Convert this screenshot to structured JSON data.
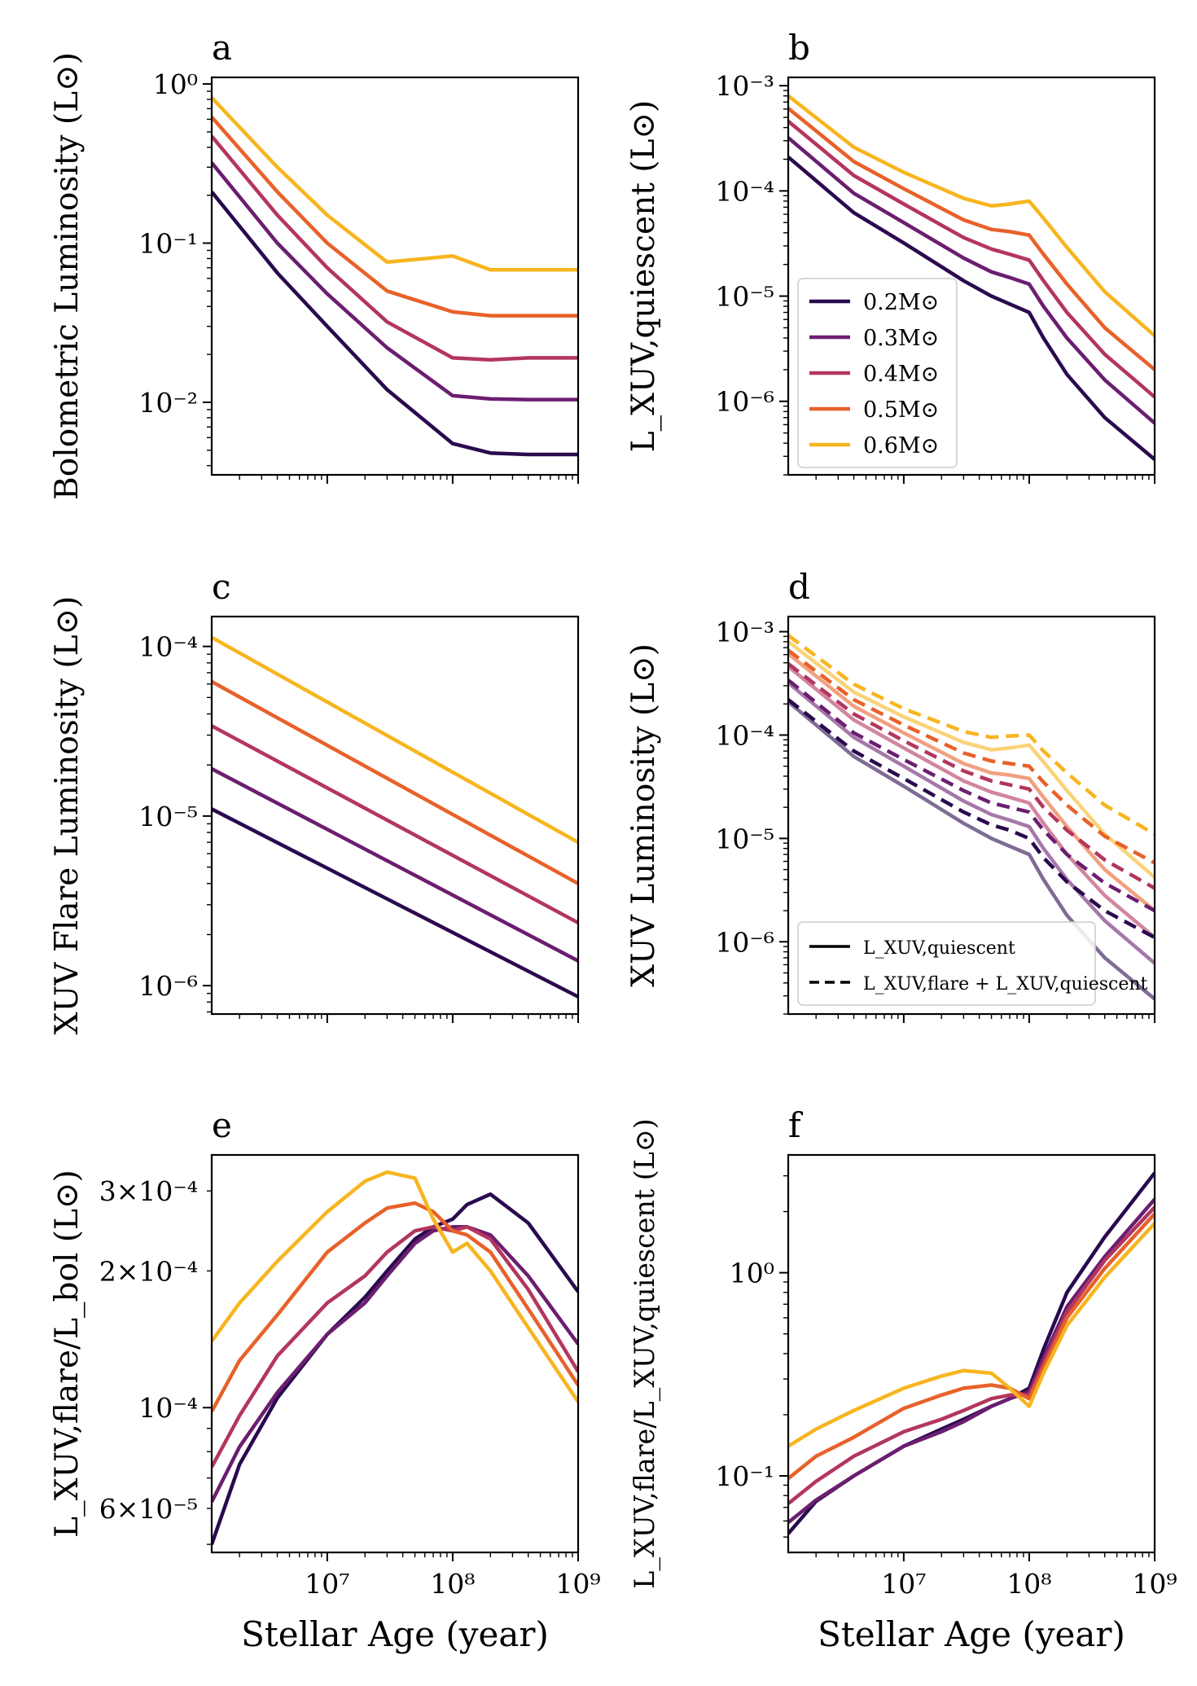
{
  "figure": {
    "series_labels": [
      "0.2M⊙",
      "0.3M⊙",
      "0.4M⊙",
      "0.5M⊙",
      "0.6M⊙"
    ],
    "series_colors": [
      "#2a0a4e",
      "#6b1e70",
      "#b3365e",
      "#e8612a",
      "#f7b51f"
    ],
    "xlabel": "Stellar Age (year)"
  },
  "chart_data": [
    {
      "panel": "a",
      "type": "line",
      "log_x": true,
      "log_y": true,
      "xlim": [
        1200000.0,
        1000000000.0
      ],
      "ylim": [
        0.0035,
        1.1
      ],
      "title": "",
      "xlabel": "",
      "ylabel": "Bolometric Luminosity (L⊙)",
      "ytick_labels": [
        "10⁻²",
        "10⁻¹",
        "10⁰"
      ],
      "x": [
        1200000.0,
        4000000.0,
        10000000.0,
        30000000.0,
        100000000.0,
        200000000.0,
        400000000.0,
        1000000000.0
      ],
      "series": [
        {
          "name": "0.2M⊙",
          "values": [
            0.21,
            0.065,
            0.03,
            0.012,
            0.0055,
            0.0048,
            0.0047,
            0.0047
          ]
        },
        {
          "name": "0.3M⊙",
          "values": [
            0.32,
            0.1,
            0.048,
            0.022,
            0.011,
            0.0105,
            0.0104,
            0.0104
          ]
        },
        {
          "name": "0.4M⊙",
          "values": [
            0.47,
            0.15,
            0.07,
            0.032,
            0.019,
            0.0185,
            0.019,
            0.019
          ]
        },
        {
          "name": "0.5M⊙",
          "values": [
            0.62,
            0.21,
            0.1,
            0.05,
            0.037,
            0.035,
            0.035,
            0.035
          ]
        },
        {
          "name": "0.6M⊙",
          "values": [
            0.82,
            0.3,
            0.15,
            0.076,
            0.083,
            0.068,
            0.068,
            0.068
          ]
        }
      ]
    },
    {
      "panel": "b",
      "type": "line",
      "log_x": true,
      "log_y": true,
      "xlim": [
        1200000.0,
        1000000000.0
      ],
      "ylim": [
        2e-07,
        0.0012
      ],
      "title": "",
      "xlabel": "",
      "ylabel": "L_XUV,quiescent (L⊙)",
      "ytick_labels": [
        "10⁻⁶",
        "10⁻⁵",
        "10⁻⁴",
        "10⁻³"
      ],
      "legend": "center-left",
      "x": [
        1200000.0,
        4000000.0,
        10000000.0,
        30000000.0,
        50000000.0,
        70000000.0,
        100000000.0,
        130000000.0,
        200000000.0,
        400000000.0,
        1000000000.0
      ],
      "series": [
        {
          "name": "0.2M⊙",
          "values": [
            0.00021,
            6.2e-05,
            3.2e-05,
            1.4e-05,
            1e-05,
            8.4e-06,
            7e-06,
            4e-06,
            1.8e-06,
            7e-07,
            2.8e-07
          ]
        },
        {
          "name": "0.3M⊙",
          "values": [
            0.00032,
            9.5e-05,
            5e-05,
            2.3e-05,
            1.7e-05,
            1.5e-05,
            1.3e-05,
            8e-06,
            4e-06,
            1.6e-06,
            6.2e-07
          ]
        },
        {
          "name": "0.4M⊙",
          "values": [
            0.00046,
            0.00014,
            7.5e-05,
            3.6e-05,
            2.8e-05,
            2.5e-05,
            2.2e-05,
            1.4e-05,
            7e-06,
            2.8e-06,
            1.1e-06
          ]
        },
        {
          "name": "0.5M⊙",
          "values": [
            0.00061,
            0.00019,
            0.000105,
            5.3e-05,
            4.3e-05,
            4.1e-05,
            3.8e-05,
            2.5e-05,
            1.3e-05,
            5e-06,
            2e-06
          ]
        },
        {
          "name": "0.6M⊙",
          "values": [
            0.0008,
            0.00026,
            0.00015,
            8.5e-05,
            7.2e-05,
            7.5e-05,
            8e-05,
            5.5e-05,
            2.9e-05,
            1.1e-05,
            4.2e-06
          ]
        }
      ]
    },
    {
      "panel": "c",
      "type": "line",
      "log_x": true,
      "log_y": true,
      "xlim": [
        1200000.0,
        1000000000.0
      ],
      "ylim": [
        6.8e-07,
        0.00015
      ],
      "title": "",
      "xlabel": "",
      "ylabel": "XUV Flare Luminosity (L⊙)",
      "ytick_labels": [
        "10⁻⁶",
        "10⁻⁵",
        "10⁻⁴"
      ],
      "x": [
        1200000.0,
        1000000000.0
      ],
      "series": [
        {
          "name": "0.2M⊙",
          "values": [
            1.1e-05,
            8.6e-07
          ]
        },
        {
          "name": "0.3M⊙",
          "values": [
            1.9e-05,
            1.4e-06
          ]
        },
        {
          "name": "0.4M⊙",
          "values": [
            3.4e-05,
            2.35e-06
          ]
        },
        {
          "name": "0.5M⊙",
          "values": [
            6.2e-05,
            4e-06
          ]
        },
        {
          "name": "0.6M⊙",
          "values": [
            0.000113,
            7e-06
          ]
        }
      ]
    },
    {
      "panel": "d",
      "type": "line",
      "log_x": true,
      "log_y": true,
      "xlim": [
        1200000.0,
        1000000000.0
      ],
      "ylim": [
        2e-07,
        0.0014
      ],
      "title": "",
      "xlabel": "",
      "ylabel": "XUV Luminosity (L⊙)",
      "ytick_labels": [
        "10⁻⁶",
        "10⁻⁵",
        "10⁻⁴",
        "10⁻³"
      ],
      "legend": "bottom-left",
      "legend_entries": [
        {
          "style": "solid",
          "label": "L_XUV,quiescent"
        },
        {
          "style": "dashed",
          "label": "L_XUV,flare + L_XUV,quiescent"
        }
      ],
      "x": [
        1200000.0,
        4000000.0,
        10000000.0,
        30000000.0,
        50000000.0,
        70000000.0,
        100000000.0,
        130000000.0,
        200000000.0,
        400000000.0,
        1000000000.0
      ],
      "series_quiescent": [
        {
          "name": "0.2M⊙",
          "values": [
            0.00021,
            6.2e-05,
            3.2e-05,
            1.4e-05,
            1e-05,
            8.4e-06,
            7e-06,
            4e-06,
            1.8e-06,
            7e-07,
            2.8e-07
          ]
        },
        {
          "name": "0.3M⊙",
          "values": [
            0.00032,
            9.5e-05,
            5e-05,
            2.3e-05,
            1.7e-05,
            1.5e-05,
            1.3e-05,
            8e-06,
            4e-06,
            1.6e-06,
            6.2e-07
          ]
        },
        {
          "name": "0.4M⊙",
          "values": [
            0.00046,
            0.00014,
            7.5e-05,
            3.6e-05,
            2.8e-05,
            2.5e-05,
            2.2e-05,
            1.4e-05,
            7e-06,
            2.8e-06,
            1.1e-06
          ]
        },
        {
          "name": "0.5M⊙",
          "values": [
            0.00061,
            0.00019,
            0.000105,
            5.3e-05,
            4.3e-05,
            4.1e-05,
            3.8e-05,
            2.5e-05,
            1.3e-05,
            5e-06,
            2e-06
          ]
        },
        {
          "name": "0.6M⊙",
          "values": [
            0.0008,
            0.00026,
            0.00015,
            8.5e-05,
            7.2e-05,
            7.5e-05,
            8e-05,
            5.5e-05,
            2.9e-05,
            1.1e-05,
            4.2e-06
          ]
        }
      ],
      "series_total": [
        {
          "name": "0.2M⊙",
          "values": [
            0.00022,
            7e-05,
            3.8e-05,
            1.8e-05,
            1.35e-05,
            1.2e-05,
            1e-05,
            6.5e-06,
            3.8e-06,
            2e-06,
            1.1e-06
          ]
        },
        {
          "name": "0.3M⊙",
          "values": [
            0.00034,
            0.000105,
            5.8e-05,
            2.9e-05,
            2.2e-05,
            2e-05,
            1.8e-05,
            1.2e-05,
            7e-06,
            3.7e-06,
            2e-06
          ]
        },
        {
          "name": "0.4M⊙",
          "values": [
            0.00049,
            0.00016,
            8.8e-05,
            4.5e-05,
            3.6e-05,
            3.3e-05,
            3e-05,
            2e-05,
            1.2e-05,
            6.2e-06,
            3.3e-06
          ]
        },
        {
          "name": "0.5M⊙",
          "values": [
            0.00066,
            0.00022,
            0.000125,
            6.7e-05,
            5.6e-05,
            5.3e-05,
            5e-05,
            3.5e-05,
            2.1e-05,
            1.05e-05,
            5.8e-06
          ]
        },
        {
          "name": "0.6M⊙",
          "values": [
            0.00092,
            0.00031,
            0.00018,
            0.000108,
            9.5e-05,
            9.8e-05,
            0.0001,
            7e-05,
            4.3e-05,
            2.1e-05,
            1.1e-05
          ]
        }
      ]
    },
    {
      "panel": "e",
      "type": "line",
      "log_x": true,
      "log_y": true,
      "xlim": [
        1200000.0,
        1000000000.0
      ],
      "ylim": [
        4.8e-05,
        0.00036
      ],
      "title": "",
      "xlabel": "Stellar Age (year)",
      "ylabel": "L_XUV,flare/L_bol (L⊙)",
      "ytick_labels": [
        "6×10⁻⁵",
        "10⁻⁴",
        "2×10⁻⁴",
        "3×10⁻⁴"
      ],
      "xtick_labels": [
        "10⁷",
        "10⁸",
        "10⁹"
      ],
      "x": [
        1200000.0,
        2000000.0,
        4000000.0,
        10000000.0,
        20000000.0,
        30000000.0,
        50000000.0,
        70000000.0,
        100000000.0,
        130000000.0,
        200000000.0,
        400000000.0,
        1000000000.0
      ],
      "series": [
        {
          "name": "0.2M⊙",
          "values": [
            5e-05,
            7.5e-05,
            0.000105,
            0.000145,
            0.000175,
            0.0002,
            0.000235,
            0.00025,
            0.00026,
            0.00028,
            0.000295,
            0.000255,
            0.00018
          ]
        },
        {
          "name": "0.3M⊙",
          "values": [
            6.2e-05,
            8.2e-05,
            0.000108,
            0.000145,
            0.00017,
            0.000195,
            0.00023,
            0.000245,
            0.00025,
            0.00025,
            0.00024,
            0.000195,
            0.000138
          ]
        },
        {
          "name": "0.4M⊙",
          "values": [
            7.4e-05,
            9.6e-05,
            0.00013,
            0.00017,
            0.000195,
            0.00022,
            0.000245,
            0.00025,
            0.000245,
            0.00025,
            0.000235,
            0.000182,
            0.00012
          ]
        },
        {
          "name": "0.5M⊙",
          "values": [
            9.8e-05,
            0.000127,
            0.00016,
            0.00022,
            0.000255,
            0.000275,
            0.000282,
            0.00027,
            0.000245,
            0.00024,
            0.00022,
            0.000165,
            0.000112
          ]
        },
        {
          "name": "0.6M⊙",
          "values": [
            0.00014,
            0.00017,
            0.00021,
            0.00027,
            0.000315,
            0.00033,
            0.00032,
            0.00026,
            0.00022,
            0.00023,
            0.0002,
            0.00015,
            0.000103
          ]
        }
      ]
    },
    {
      "panel": "f",
      "type": "line",
      "log_x": true,
      "log_y": true,
      "xlim": [
        1200000.0,
        1000000000.0
      ],
      "ylim": [
        0.042,
        3.8
      ],
      "title": "",
      "xlabel": "Stellar Age (year)",
      "ylabel": "L_XUV,flare/L_XUV,quiescent (L⊙)",
      "ytick_labels": [
        "10⁻¹",
        "10⁰"
      ],
      "xtick_labels": [
        "10⁷",
        "10⁸",
        "10⁹"
      ],
      "x": [
        1200000.0,
        2000000.0,
        4000000.0,
        10000000.0,
        20000000.0,
        30000000.0,
        50000000.0,
        70000000.0,
        100000000.0,
        130000000.0,
        200000000.0,
        400000000.0,
        1000000000.0
      ],
      "series": [
        {
          "name": "0.2M⊙",
          "values": [
            0.052,
            0.075,
            0.1,
            0.14,
            0.17,
            0.19,
            0.22,
            0.24,
            0.27,
            0.42,
            0.8,
            1.5,
            3.1
          ]
        },
        {
          "name": "0.3M⊙",
          "values": [
            0.059,
            0.076,
            0.1,
            0.14,
            0.165,
            0.185,
            0.22,
            0.24,
            0.26,
            0.38,
            0.68,
            1.2,
            2.3
          ]
        },
        {
          "name": "0.4M⊙",
          "values": [
            0.073,
            0.094,
            0.125,
            0.165,
            0.19,
            0.21,
            0.24,
            0.25,
            0.25,
            0.36,
            0.64,
            1.15,
            2.1
          ]
        },
        {
          "name": "0.5M⊙",
          "values": [
            0.097,
            0.125,
            0.155,
            0.215,
            0.25,
            0.27,
            0.28,
            0.27,
            0.24,
            0.34,
            0.6,
            1.05,
            1.95
          ]
        },
        {
          "name": "0.6M⊙",
          "values": [
            0.14,
            0.17,
            0.21,
            0.27,
            0.31,
            0.33,
            0.32,
            0.27,
            0.22,
            0.32,
            0.55,
            0.95,
            1.75
          ]
        }
      ]
    }
  ]
}
